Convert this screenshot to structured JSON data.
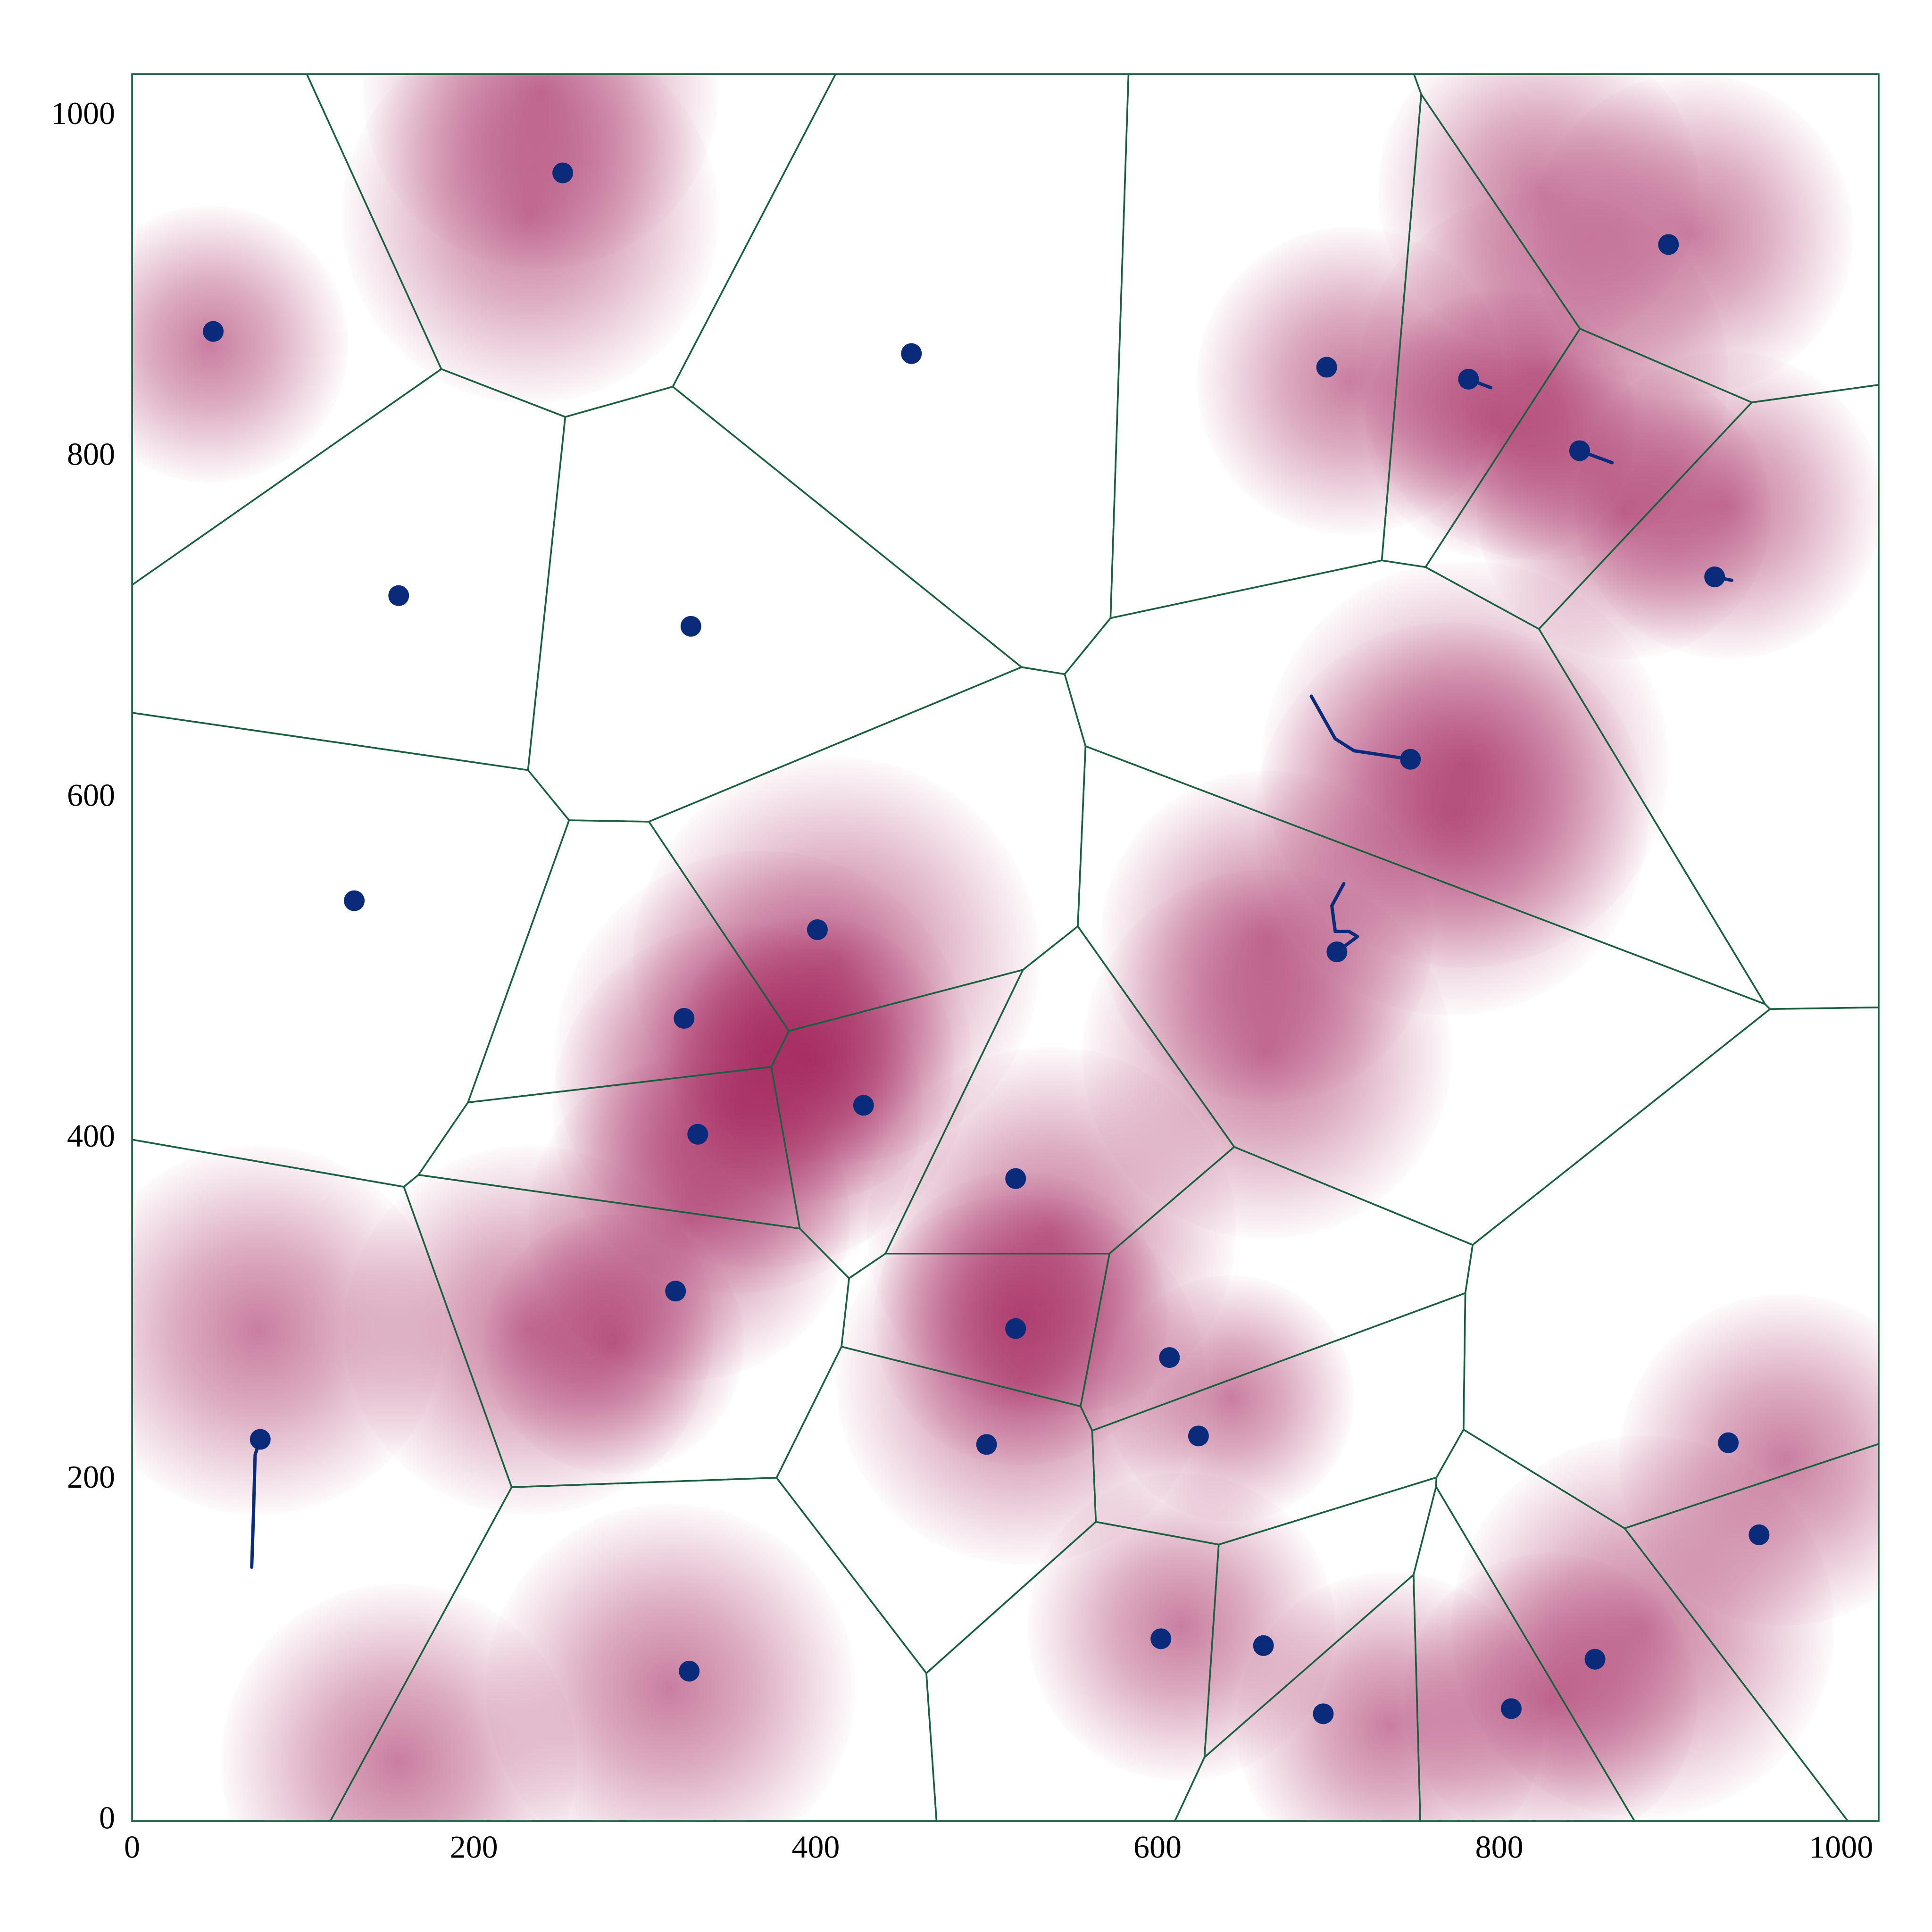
{
  "chart_data": {
    "type": "scatter",
    "xlim": [
      0,
      1022
    ],
    "ylim": [
      0,
      1025
    ],
    "xticks": [
      0,
      200,
      400,
      600,
      800,
      1000
    ],
    "yticks": [
      0,
      200,
      400,
      600,
      800,
      1000
    ],
    "grid": false,
    "points": {
      "color": "#0a2a7a",
      "x": [
        47.5,
        252,
        456,
        156,
        327,
        130,
        699,
        782,
        847,
        899,
        926,
        748,
        705,
        401,
        323,
        428,
        331,
        517,
        318,
        517,
        607,
        624,
        500,
        75,
        934,
        952,
        326,
        602,
        662,
        697,
        807,
        856
      ],
      "y": [
        874,
        967,
        861,
        719,
        701,
        540,
        853,
        846,
        804,
        925,
        730,
        623,
        510,
        523,
        471,
        420,
        403,
        377,
        311,
        289,
        272,
        226,
        221,
        224,
        222,
        168,
        88,
        107,
        103,
        63,
        66,
        95
      ]
    },
    "trails": {
      "color": "#0a2a7a",
      "lines": [
        {
          "x": [
            75,
            72,
            71,
            70
          ],
          "y": [
            224,
            215,
            179,
            149
          ]
        },
        {
          "x": [
            748,
            715,
            704,
            690
          ],
          "y": [
            623,
            628,
            635,
            660
          ]
        },
        {
          "x": [
            705,
            717,
            712,
            704,
            702,
            709
          ],
          "y": [
            510,
            519,
            522,
            522,
            537,
            550
          ]
        },
        {
          "x": [
            782,
            795
          ],
          "y": [
            846,
            841
          ]
        },
        {
          "x": [
            847,
            866
          ],
          "y": [
            804,
            797
          ]
        },
        {
          "x": [
            926,
            936
          ],
          "y": [
            730,
            728
          ]
        }
      ]
    },
    "density": {
      "color": "#9c1450",
      "x": [
        45.5,
        233,
        239,
        713,
        801,
        826,
        823,
        913,
        934,
        873,
        780,
        772,
        664,
        664,
        412,
        369,
        398,
        354,
        326,
        538,
        520,
        282,
        232,
        74,
        643,
        614,
        736,
        830,
        884,
        967,
        315,
        156,
        520
      ],
      "y": [
        866.5,
        942,
        1015,
        845,
        819,
        848,
        957,
        931,
        772,
        768,
        620,
        588,
        519,
        450,
        505,
        447,
        447,
        418,
        353,
        346,
        295,
        280,
        288,
        288,
        248,
        114,
        56,
        71,
        114,
        212,
        78,
        35,
        259
      ],
      "r": [
        81,
        110,
        104,
        90,
        79,
        108,
        94,
        94,
        90,
        86,
        119,
        115,
        97,
        108,
        119,
        122,
        83,
        108,
        94,
        108,
        86,
        76,
        108,
        108,
        72,
        90,
        90,
        86,
        112,
        97,
        108,
        104,
        108
      ]
    },
    "voronoi": {
      "color": "#1a6040"
    }
  }
}
